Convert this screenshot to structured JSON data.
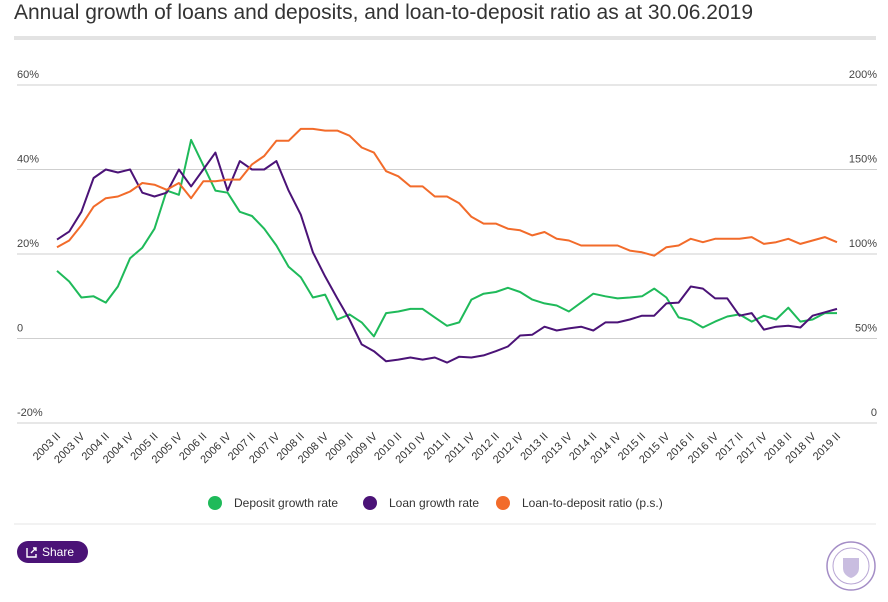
{
  "chart_data": {
    "type": "line",
    "title": "Annual growth of loans and deposits, and loan-to-deposit ratio as at 30.06.2019",
    "categories": [
      "2003 II",
      null,
      "2003 IV",
      null,
      "2004 II",
      null,
      "2004 IV",
      null,
      "2005 II",
      null,
      "2005 IV",
      null,
      "2006 II",
      null,
      "2006 IV",
      null,
      "2007 II",
      null,
      "2007 IV",
      null,
      "2008 II",
      null,
      "2008 IV",
      null,
      "2009 II",
      null,
      "2009 IV",
      null,
      "2010 II",
      null,
      "2010 IV",
      null,
      "2011 II",
      null,
      "2011 IV",
      null,
      "2012 II",
      null,
      "2012 IV",
      null,
      "2013 II",
      null,
      "2013 IV",
      null,
      "2014 II",
      null,
      "2014 IV",
      null,
      "2015 II",
      null,
      "2015 IV",
      null,
      "2016 II",
      null,
      "2016 IV",
      null,
      "2017 II",
      null,
      "2017 IV",
      null,
      "2018 II",
      null,
      "2018 IV",
      null,
      "2019 II"
    ],
    "series": [
      {
        "name": "Deposit growth rate",
        "color": "#1fba5a",
        "values": [
          16,
          13.5,
          9.7,
          10,
          8.5,
          12.3,
          19,
          21.5,
          26,
          35,
          34,
          47,
          41,
          35,
          34.5,
          30,
          29,
          26,
          22,
          17,
          14.5,
          9.7,
          10.4,
          4.5,
          5.7,
          3.8,
          0.5,
          6,
          6.4,
          7,
          7,
          5,
          3,
          3.8,
          9.2,
          10.6,
          11,
          12,
          11,
          9.2,
          8.3,
          7.8,
          6.4,
          8.5,
          10.6,
          10,
          9.5,
          9.7,
          10,
          11.8,
          9.7,
          5,
          4.3,
          2.6,
          4,
          5.2,
          5.7,
          4,
          5.4,
          4.5,
          7.3,
          4,
          4.5,
          6,
          6
        ]
      },
      {
        "name": "Loan growth rate",
        "color": "#4b1377",
        "values": [
          23.4,
          25.3,
          30,
          38,
          40,
          39.3,
          40,
          34.5,
          33.6,
          34.5,
          40,
          36,
          40,
          44,
          35,
          42,
          40,
          40,
          42,
          35,
          29.3,
          20.4,
          14.7,
          9.5,
          4.5,
          -1.4,
          -3,
          -5.4,
          -5,
          -4.5,
          -5,
          -4.5,
          -5.7,
          -4.3,
          -4.5,
          -4,
          -3,
          -1.9,
          0.7,
          0.9,
          2.8,
          1.9,
          2.4,
          2.8,
          1.9,
          3.8,
          3.8,
          4.5,
          5.4,
          5.4,
          8.3,
          8.5,
          12.3,
          11.8,
          9.5,
          9.5,
          5.4,
          6,
          2.1,
          2.8,
          3,
          2.6,
          5.4,
          6.2,
          7
        ]
      },
      {
        "name": "Loan-to-deposit ratio (p.s.)",
        "color": "#f26b2a",
        "axis": "y2",
        "values": [
          104,
          108,
          117,
          128,
          133,
          134,
          137,
          142,
          141,
          138,
          142,
          133,
          143,
          143,
          144,
          144,
          153,
          158,
          167,
          167,
          174,
          174,
          173,
          173,
          170,
          163,
          160,
          149,
          146,
          140,
          140,
          134,
          134,
          130,
          122,
          118,
          118,
          115,
          114,
          111,
          113,
          109,
          108,
          105,
          105,
          105,
          105,
          102,
          101,
          99,
          104,
          105,
          109,
          107,
          109,
          109,
          109,
          110,
          106,
          107,
          109,
          106,
          108,
          110,
          107
        ]
      }
    ],
    "ylim": [
      -20,
      60
    ],
    "yticks": [
      {
        "value": -20,
        "label": "-20%"
      },
      0,
      {
        "value": 20,
        "label": "20%"
      },
      {
        "value": 40,
        "label": "40%"
      },
      {
        "value": 60,
        "label": "60%"
      }
    ],
    "y2lim": [
      0,
      200
    ],
    "y2ticks": [
      0,
      {
        "value": 50,
        "label": "50%"
      },
      {
        "value": 100,
        "label": "100%"
      },
      {
        "value": 150,
        "label": "150%"
      },
      {
        "value": 200,
        "label": "200%"
      }
    ],
    "grid": true,
    "legend": "bottom"
  },
  "ui": {
    "share": "Share"
  }
}
